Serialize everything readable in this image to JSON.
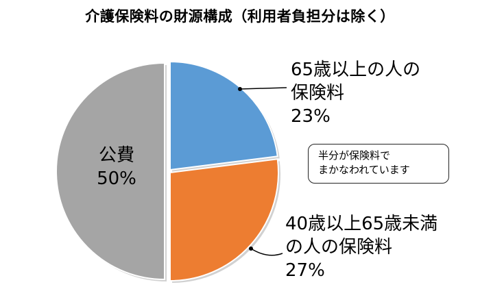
{
  "chart_data": {
    "type": "pie",
    "title": "介護保険料の財源構成（利用者負担分は除く）",
    "slices": [
      {
        "label_lines": [
          "65歳以上の人の",
          "保険料"
        ],
        "pct_text": "23%",
        "value": 23,
        "color": "#5b9bd5"
      },
      {
        "label_lines": [
          "40歳以上65歳未満",
          "の人の保険料"
        ],
        "pct_text": "27%",
        "value": 27,
        "color": "#ed7d31"
      },
      {
        "label_lines": [
          "公費"
        ],
        "pct_text": "50%",
        "value": 50,
        "color": "#a5a5a5"
      }
    ]
  },
  "note": {
    "lines": [
      "半分が保険料で",
      "まかなわれています"
    ]
  }
}
